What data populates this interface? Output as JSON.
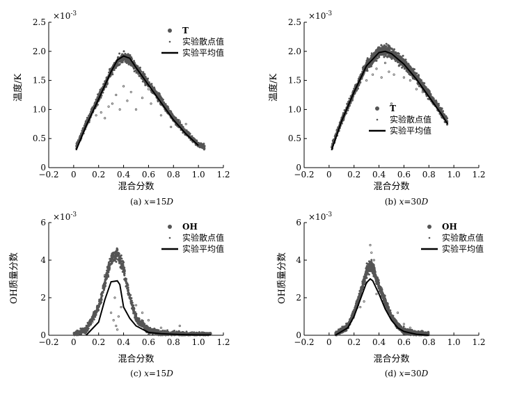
{
  "chart_data": [
    {
      "type": "scatter",
      "caption": "(a) x=15D",
      "caption_prefix": "(a) ",
      "caption_var": "x",
      "caption_rest": "=15",
      "caption_unit": "D",
      "xlabel": "混合分数",
      "ylabel": "温度/K",
      "y_multiplier": "×10",
      "y_exponent": "-3",
      "xlim": [
        -0.2,
        1.2
      ],
      "ylim": [
        0,
        2.5
      ],
      "xticks": [
        -0.2,
        0,
        0.2,
        0.4,
        0.6,
        0.8,
        1.0,
        1.2
      ],
      "xtick_labels": [
        "−0.2",
        "0",
        "0.2",
        "0.4",
        "0.6",
        "0.8",
        "1.0",
        "1.2"
      ],
      "yticks": [
        0,
        0.5,
        1.0,
        1.5,
        2.0,
        2.5
      ],
      "ytick_labels": [
        "0",
        "0.5",
        "1.0",
        "1.5",
        "2.0",
        "2.5"
      ],
      "legend": {
        "position": "top-right",
        "entries": [
          "T",
          "实验散点值",
          "实验平均值"
        ]
      },
      "series": [
        {
          "name": "T",
          "kind": "band",
          "color": "#555555",
          "x": [
            0.02,
            0.1,
            0.2,
            0.3,
            0.35,
            0.4,
            0.45,
            0.5,
            0.6,
            0.7,
            0.8,
            0.9,
            1.0,
            1.05
          ],
          "y": [
            0.35,
            0.75,
            1.2,
            1.65,
            1.82,
            1.9,
            1.86,
            1.72,
            1.45,
            1.15,
            0.85,
            0.6,
            0.4,
            0.35
          ],
          "spread": 0.1
        },
        {
          "name": "实验散点值",
          "kind": "scatter",
          "color": "#555555",
          "x": [
            0.22,
            0.25,
            0.28,
            0.31,
            0.34,
            0.37,
            0.4,
            0.43,
            0.46,
            0.5,
            0.55,
            0.62,
            0.7,
            0.78,
            0.85,
            0.95,
            0.18,
            0.6,
            0.75,
            0.9
          ],
          "y": [
            0.95,
            0.85,
            1.05,
            1.1,
            1.25,
            1.0,
            1.4,
            1.15,
            1.3,
            1.0,
            1.2,
            1.1,
            0.9,
            0.7,
            0.8,
            0.5,
            0.9,
            1.35,
            1.0,
            0.75
          ]
        },
        {
          "name": "实验平均值",
          "kind": "line",
          "color": "#000000",
          "x": [
            0.02,
            0.1,
            0.2,
            0.3,
            0.35,
            0.4,
            0.45,
            0.5,
            0.6,
            0.7,
            0.8,
            0.9,
            1.0
          ],
          "y": [
            0.3,
            0.72,
            1.18,
            1.65,
            1.85,
            1.92,
            1.88,
            1.72,
            1.42,
            1.12,
            0.82,
            0.58,
            0.38
          ]
        }
      ]
    },
    {
      "type": "scatter",
      "caption": "(b) x=30D",
      "caption_prefix": "(b) ",
      "caption_var": "x",
      "caption_rest": "=30",
      "caption_unit": "D",
      "xlabel": "混合分数",
      "ylabel": "温度/K",
      "y_multiplier": "×10",
      "y_exponent": "-3",
      "xlim": [
        -0.2,
        1.2
      ],
      "ylim": [
        0,
        2.5
      ],
      "xticks": [
        -0.2,
        0,
        0.2,
        0.4,
        0.6,
        0.8,
        1.0,
        1.2
      ],
      "xtick_labels": [
        "−0.2",
        "0",
        "0.2",
        "0.4",
        "0.6",
        "0.8",
        "1.0",
        "1.2"
      ],
      "yticks": [
        0,
        0.5,
        1.0,
        1.5,
        2.0,
        2.5
      ],
      "ytick_labels": [
        "0",
        "0.5",
        "1.0",
        "1.5",
        "2.0",
        "2.5"
      ],
      "legend": {
        "position": "center-left",
        "entries": [
          "T",
          "实验散点值",
          "实验平均值"
        ]
      },
      "series": [
        {
          "name": "T",
          "kind": "band",
          "color": "#555555",
          "x": [
            0.02,
            0.1,
            0.2,
            0.3,
            0.4,
            0.45,
            0.5,
            0.6,
            0.7,
            0.8,
            0.9,
            0.95
          ],
          "y": [
            0.35,
            0.8,
            1.3,
            1.75,
            2.0,
            2.02,
            1.98,
            1.8,
            1.55,
            1.25,
            0.95,
            0.78
          ],
          "spread": 0.11
        },
        {
          "name": "实验散点值",
          "kind": "scatter",
          "color": "#555555",
          "x": [
            0.3,
            0.35,
            0.38,
            0.42,
            0.45,
            0.48,
            0.52,
            0.56,
            0.6,
            0.65,
            0.7,
            0.75,
            0.55,
            0.5
          ],
          "y": [
            1.5,
            1.6,
            1.7,
            1.55,
            1.8,
            1.65,
            1.6,
            1.75,
            1.55,
            1.5,
            1.35,
            1.3,
            1.9,
            1.1
          ]
        },
        {
          "name": "实验平均值",
          "kind": "line",
          "color": "#000000",
          "x": [
            0.02,
            0.1,
            0.2,
            0.3,
            0.4,
            0.45,
            0.5,
            0.6,
            0.7,
            0.8,
            0.9,
            0.95
          ],
          "y": [
            0.3,
            0.8,
            1.3,
            1.75,
            1.98,
            2.0,
            1.96,
            1.78,
            1.52,
            1.22,
            0.92,
            0.75
          ]
        }
      ]
    },
    {
      "type": "scatter",
      "caption": "(c) x=15D",
      "caption_prefix": "(c) ",
      "caption_var": "x",
      "caption_rest": "=15",
      "caption_unit": "D",
      "xlabel": "混合分数",
      "ylabel": "OH质量分数",
      "y_multiplier": "×10",
      "y_exponent": "-3",
      "xlim": [
        -0.2,
        1.2
      ],
      "ylim": [
        0,
        6
      ],
      "xticks": [
        -0.2,
        0,
        0.2,
        0.4,
        0.6,
        0.8,
        1.0,
        1.2
      ],
      "xtick_labels": [
        "−0.2",
        "0",
        "0.2",
        "0.4",
        "0.6",
        "0.8",
        "1.0",
        "1.2"
      ],
      "yticks": [
        0,
        2,
        4,
        6
      ],
      "ytick_labels": [
        "0",
        "2",
        "4",
        "6"
      ],
      "legend": {
        "position": "top-right",
        "entries": [
          "OH",
          "实验散点值",
          "实验平均值"
        ]
      },
      "series": [
        {
          "name": "OH",
          "kind": "band",
          "color": "#555555",
          "x": [
            0.0,
            0.1,
            0.2,
            0.25,
            0.3,
            0.35,
            0.4,
            0.45,
            0.5,
            0.6,
            0.7,
            0.8,
            0.9,
            1.0,
            1.1
          ],
          "y": [
            0.0,
            0.3,
            1.5,
            2.8,
            4.0,
            4.4,
            3.5,
            2.0,
            0.9,
            0.25,
            0.1,
            0.05,
            0.02,
            0.0,
            0.0
          ],
          "spread": 0.45
        },
        {
          "name": "实验散点值",
          "kind": "scatter",
          "color": "#555555",
          "x": [
            0.3,
            0.32,
            0.34,
            0.36,
            0.38,
            0.33,
            0.35,
            0.42,
            0.5,
            0.6,
            0.7,
            0.8,
            0.85,
            0.95,
            0.15,
            0.25,
            0.55
          ],
          "y": [
            1.2,
            0.8,
            0.5,
            1.0,
            1.5,
            2.0,
            0.3,
            2.6,
            1.6,
            0.8,
            0.4,
            0.2,
            0.5,
            0.15,
            0.7,
            3.2,
            1.2
          ]
        },
        {
          "name": "实验平均值",
          "kind": "line",
          "color": "#000000",
          "x": [
            0.1,
            0.2,
            0.25,
            0.3,
            0.35,
            0.37,
            0.4,
            0.45,
            0.5,
            0.6,
            0.7,
            0.8,
            0.9,
            1.0,
            1.1
          ],
          "y": [
            0.0,
            0.7,
            1.9,
            2.85,
            2.9,
            2.7,
            1.5,
            0.9,
            0.5,
            0.15,
            0.08,
            0.05,
            0.03,
            0.02,
            0.02
          ]
        }
      ]
    },
    {
      "type": "scatter",
      "caption": "(d) x=30D",
      "caption_prefix": "(d) ",
      "caption_var": "x",
      "caption_rest": "=30",
      "caption_unit": "D",
      "xlabel": "混合分数",
      "ylabel": "OH质量分数",
      "y_multiplier": "×10",
      "y_exponent": "-3",
      "xlim": [
        -0.2,
        1.2
      ],
      "ylim": [
        0,
        6
      ],
      "xticks": [
        -0.2,
        0,
        0.2,
        0.4,
        0.6,
        0.8,
        1.0,
        1.2
      ],
      "xtick_labels": [
        "−0.2",
        "0",
        "0.2",
        "0.4",
        "0.6",
        "0.8",
        "1.0",
        "1.2"
      ],
      "yticks": [
        0,
        2,
        4,
        6
      ],
      "ytick_labels": [
        "0",
        "2",
        "4",
        "6"
      ],
      "legend": {
        "position": "top-right",
        "entries": [
          "OH",
          "实验散点值",
          "实验平均值"
        ]
      },
      "series": [
        {
          "name": "OH",
          "kind": "band",
          "color": "#555555",
          "x": [
            0.05,
            0.15,
            0.2,
            0.25,
            0.3,
            0.33,
            0.35,
            0.4,
            0.45,
            0.5,
            0.55,
            0.6,
            0.7,
            0.8
          ],
          "y": [
            0.0,
            0.5,
            1.2,
            2.2,
            3.4,
            3.7,
            3.6,
            2.6,
            1.8,
            1.0,
            0.5,
            0.25,
            0.08,
            0.02
          ],
          "spread": 0.4
        },
        {
          "name": "实验散点值",
          "kind": "scatter",
          "color": "#555555",
          "x": [
            0.33,
            0.34,
            0.36,
            0.3,
            0.38,
            0.42,
            0.28,
            0.25,
            0.45,
            0.5,
            0.55,
            0.6,
            0.65,
            0.75,
            0.18
          ],
          "y": [
            4.8,
            4.4,
            4.0,
            2.8,
            2.2,
            2.5,
            1.8,
            1.5,
            1.6,
            1.0,
            1.2,
            0.6,
            0.4,
            0.2,
            0.8
          ]
        },
        {
          "name": "实验平均值",
          "kind": "line",
          "color": "#000000",
          "x": [
            0.05,
            0.15,
            0.2,
            0.25,
            0.3,
            0.33,
            0.35,
            0.4,
            0.45,
            0.5,
            0.55,
            0.6,
            0.7,
            0.8
          ],
          "y": [
            0.0,
            0.4,
            1.0,
            1.9,
            2.8,
            3.0,
            2.9,
            2.2,
            1.4,
            0.8,
            0.4,
            0.2,
            0.05,
            0.0
          ]
        }
      ]
    }
  ]
}
